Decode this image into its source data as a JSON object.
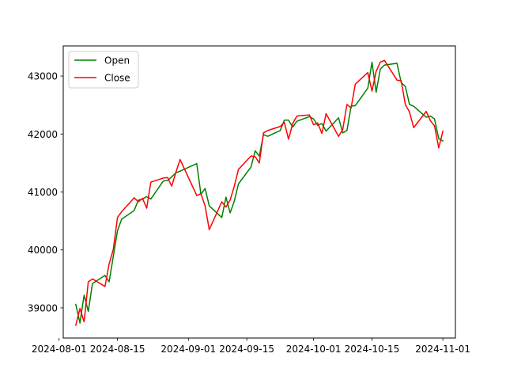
{
  "chart_data": {
    "type": "line",
    "title": "",
    "xlabel": "",
    "ylabel": "",
    "x_axis_type": "date",
    "xlim": [
      "2024-08-02",
      "2024-11-04"
    ],
    "ylim": [
      38480,
      43520
    ],
    "x_ticks": [
      "2024-08-01",
      "2024-08-15",
      "2024-09-01",
      "2024-09-15",
      "2024-10-01",
      "2024-10-15",
      "2024-11-01"
    ],
    "y_ticks": [
      39000,
      40000,
      41000,
      42000,
      43000
    ],
    "grid": false,
    "legend": {
      "position": "top-left",
      "entries": [
        "Open",
        "Close"
      ]
    },
    "series": [
      {
        "name": "Open",
        "color": "#008000",
        "points": [
          [
            "2024-08-05",
            39060
          ],
          [
            "2024-08-06",
            38740
          ],
          [
            "2024-08-07",
            39220
          ],
          [
            "2024-08-08",
            38940
          ],
          [
            "2024-08-09",
            39420
          ],
          [
            "2024-08-12",
            39560
          ],
          [
            "2024-08-13",
            39450
          ],
          [
            "2024-08-14",
            39890
          ],
          [
            "2024-08-15",
            40330
          ],
          [
            "2024-08-16",
            40530
          ],
          [
            "2024-08-19",
            40680
          ],
          [
            "2024-08-20",
            40860
          ],
          [
            "2024-08-21",
            40880
          ],
          [
            "2024-08-22",
            40920
          ],
          [
            "2024-08-23",
            40880
          ],
          [
            "2024-08-26",
            41190
          ],
          [
            "2024-08-27",
            41200
          ],
          [
            "2024-08-28",
            41260
          ],
          [
            "2024-08-29",
            41330
          ],
          [
            "2024-08-30",
            41360
          ],
          [
            "2024-09-03",
            41490
          ],
          [
            "2024-09-04",
            40960
          ],
          [
            "2024-09-05",
            41060
          ],
          [
            "2024-09-06",
            40760
          ],
          [
            "2024-09-09",
            40560
          ],
          [
            "2024-09-10",
            40910
          ],
          [
            "2024-09-11",
            40640
          ],
          [
            "2024-09-12",
            40840
          ],
          [
            "2024-09-13",
            41140
          ],
          [
            "2024-09-16",
            41430
          ],
          [
            "2024-09-17",
            41710
          ],
          [
            "2024-09-18",
            41620
          ],
          [
            "2024-09-19",
            41990
          ],
          [
            "2024-09-20",
            41960
          ],
          [
            "2024-09-23",
            42060
          ],
          [
            "2024-09-24",
            42240
          ],
          [
            "2024-09-25",
            42240
          ],
          [
            "2024-09-26",
            42120
          ],
          [
            "2024-09-27",
            42220
          ],
          [
            "2024-09-30",
            42300
          ],
          [
            "2024-10-01",
            42260
          ],
          [
            "2024-10-02",
            42150
          ],
          [
            "2024-10-03",
            42180
          ],
          [
            "2024-10-04",
            42050
          ],
          [
            "2024-10-07",
            42280
          ],
          [
            "2024-10-08",
            42020
          ],
          [
            "2024-10-09",
            42060
          ],
          [
            "2024-10-10",
            42480
          ],
          [
            "2024-10-11",
            42490
          ],
          [
            "2024-10-14",
            42790
          ],
          [
            "2024-10-15",
            43240
          ],
          [
            "2024-10-16",
            42720
          ],
          [
            "2024-10-17",
            43120
          ],
          [
            "2024-10-18",
            43190
          ],
          [
            "2024-10-21",
            43220
          ],
          [
            "2024-10-22",
            42890
          ],
          [
            "2024-10-23",
            42820
          ],
          [
            "2024-10-24",
            42510
          ],
          [
            "2024-10-25",
            42480
          ],
          [
            "2024-10-28",
            42290
          ],
          [
            "2024-10-29",
            42310
          ],
          [
            "2024-10-30",
            42260
          ],
          [
            "2024-10-31",
            41920
          ],
          [
            "2024-11-01",
            41880
          ]
        ]
      },
      {
        "name": "Close",
        "color": "#ff0000",
        "points": [
          [
            "2024-08-05",
            38700
          ],
          [
            "2024-08-06",
            38990
          ],
          [
            "2024-08-07",
            38760
          ],
          [
            "2024-08-08",
            39450
          ],
          [
            "2024-08-09",
            39500
          ],
          [
            "2024-08-12",
            39370
          ],
          [
            "2024-08-13",
            39760
          ],
          [
            "2024-08-14",
            40010
          ],
          [
            "2024-08-15",
            40560
          ],
          [
            "2024-08-16",
            40660
          ],
          [
            "2024-08-19",
            40900
          ],
          [
            "2024-08-20",
            40830
          ],
          [
            "2024-08-21",
            40890
          ],
          [
            "2024-08-22",
            40720
          ],
          [
            "2024-08-23",
            41170
          ],
          [
            "2024-08-26",
            41240
          ],
          [
            "2024-08-27",
            41250
          ],
          [
            "2024-08-28",
            41100
          ],
          [
            "2024-08-29",
            41340
          ],
          [
            "2024-08-30",
            41560
          ],
          [
            "2024-09-03",
            40940
          ],
          [
            "2024-09-04",
            40970
          ],
          [
            "2024-09-05",
            40760
          ],
          [
            "2024-09-06",
            40350
          ],
          [
            "2024-09-09",
            40830
          ],
          [
            "2024-09-10",
            40740
          ],
          [
            "2024-09-11",
            40860
          ],
          [
            "2024-09-12",
            41100
          ],
          [
            "2024-09-13",
            41390
          ],
          [
            "2024-09-16",
            41620
          ],
          [
            "2024-09-17",
            41610
          ],
          [
            "2024-09-18",
            41500
          ],
          [
            "2024-09-19",
            42020
          ],
          [
            "2024-09-20",
            42060
          ],
          [
            "2024-09-23",
            42130
          ],
          [
            "2024-09-24",
            42200
          ],
          [
            "2024-09-25",
            41910
          ],
          [
            "2024-09-26",
            42180
          ],
          [
            "2024-09-27",
            42310
          ],
          [
            "2024-09-30",
            42330
          ],
          [
            "2024-10-01",
            42160
          ],
          [
            "2024-10-02",
            42190
          ],
          [
            "2024-10-03",
            42010
          ],
          [
            "2024-10-04",
            42350
          ],
          [
            "2024-10-07",
            41960
          ],
          [
            "2024-10-08",
            42080
          ],
          [
            "2024-10-09",
            42510
          ],
          [
            "2024-10-10",
            42450
          ],
          [
            "2024-10-11",
            42860
          ],
          [
            "2024-10-14",
            43060
          ],
          [
            "2024-10-15",
            42740
          ],
          [
            "2024-10-16",
            43080
          ],
          [
            "2024-10-17",
            43240
          ],
          [
            "2024-10-18",
            43270
          ],
          [
            "2024-10-21",
            42930
          ],
          [
            "2024-10-22",
            42920
          ],
          [
            "2024-10-23",
            42510
          ],
          [
            "2024-10-24",
            42380
          ],
          [
            "2024-10-25",
            42110
          ],
          [
            "2024-10-28",
            42390
          ],
          [
            "2024-10-29",
            42230
          ],
          [
            "2024-10-30",
            42140
          ],
          [
            "2024-10-31",
            41760
          ],
          [
            "2024-11-01",
            42050
          ]
        ]
      }
    ]
  }
}
